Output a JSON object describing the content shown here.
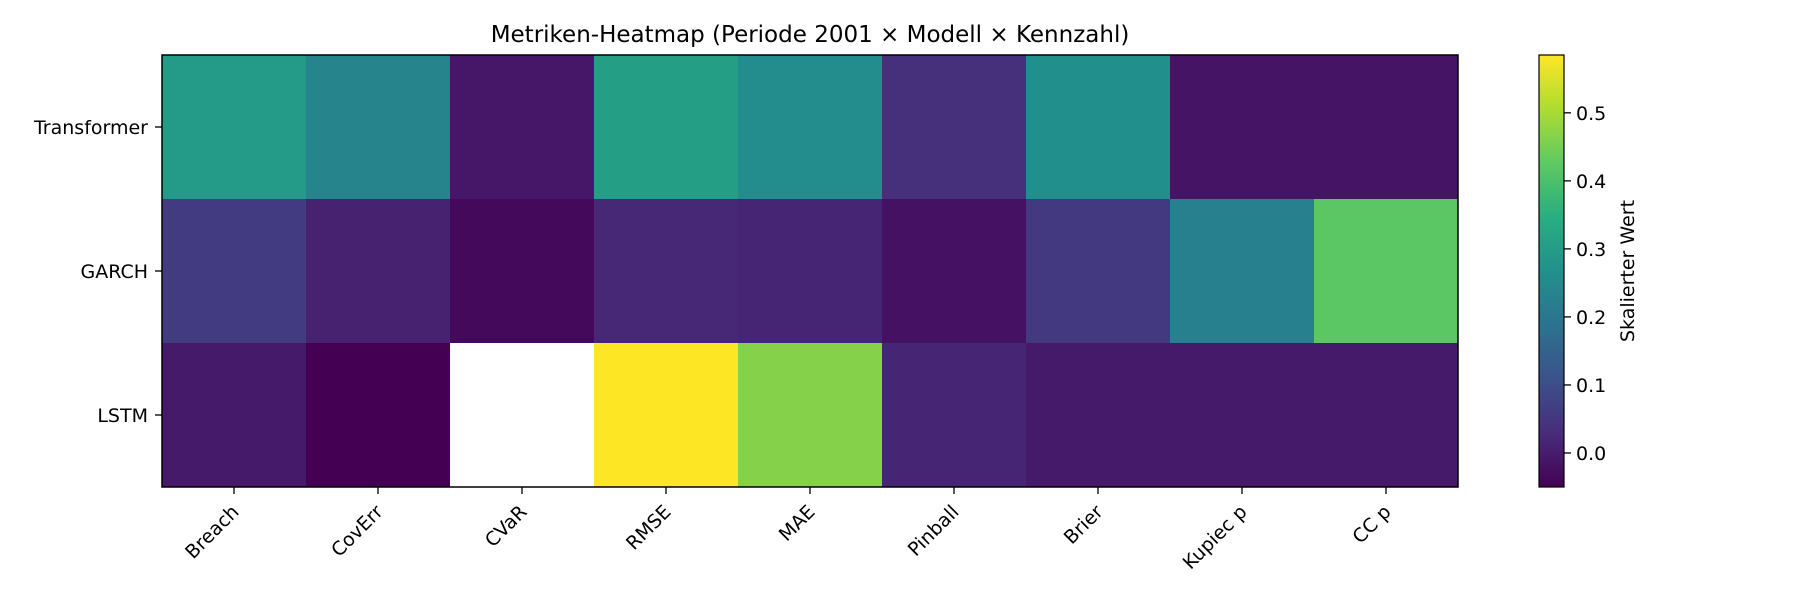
{
  "chart_data": {
    "type": "heatmap",
    "title": "Metriken-Heatmap (Periode 2001 × Modell × Kennzahl)",
    "xlabel": "",
    "ylabel": "",
    "columns": [
      "Breach",
      "CovErr",
      "CVaR",
      "RMSE",
      "MAE",
      "Pinball",
      "Brier",
      "Kupiec p",
      "CC p"
    ],
    "rows": [
      "Transformer",
      "GARCH",
      "LSTM"
    ],
    "values": [
      [
        0.295,
        0.235,
        -0.01,
        0.305,
        0.255,
        0.035,
        0.265,
        -0.015,
        -0.015
      ],
      [
        0.06,
        0.01,
        -0.035,
        0.02,
        0.015,
        -0.02,
        0.055,
        0.225,
        0.42
      ],
      [
        -0.005,
        -0.05,
        null,
        0.585,
        0.465,
        0.015,
        -0.005,
        -0.005,
        -0.005
      ]
    ],
    "missing_color": "#ffffff",
    "colormap": "viridis",
    "vmin": -0.05,
    "vmax": 0.585,
    "colorbar": {
      "label": "Skalierter Wert",
      "ticks": [
        0.0,
        0.1,
        0.2,
        0.3,
        0.4,
        0.5
      ],
      "tick_labels": [
        "0.0",
        "0.1",
        "0.2",
        "0.3",
        "0.4",
        "0.5"
      ]
    },
    "grid": false,
    "legend": "none"
  }
}
